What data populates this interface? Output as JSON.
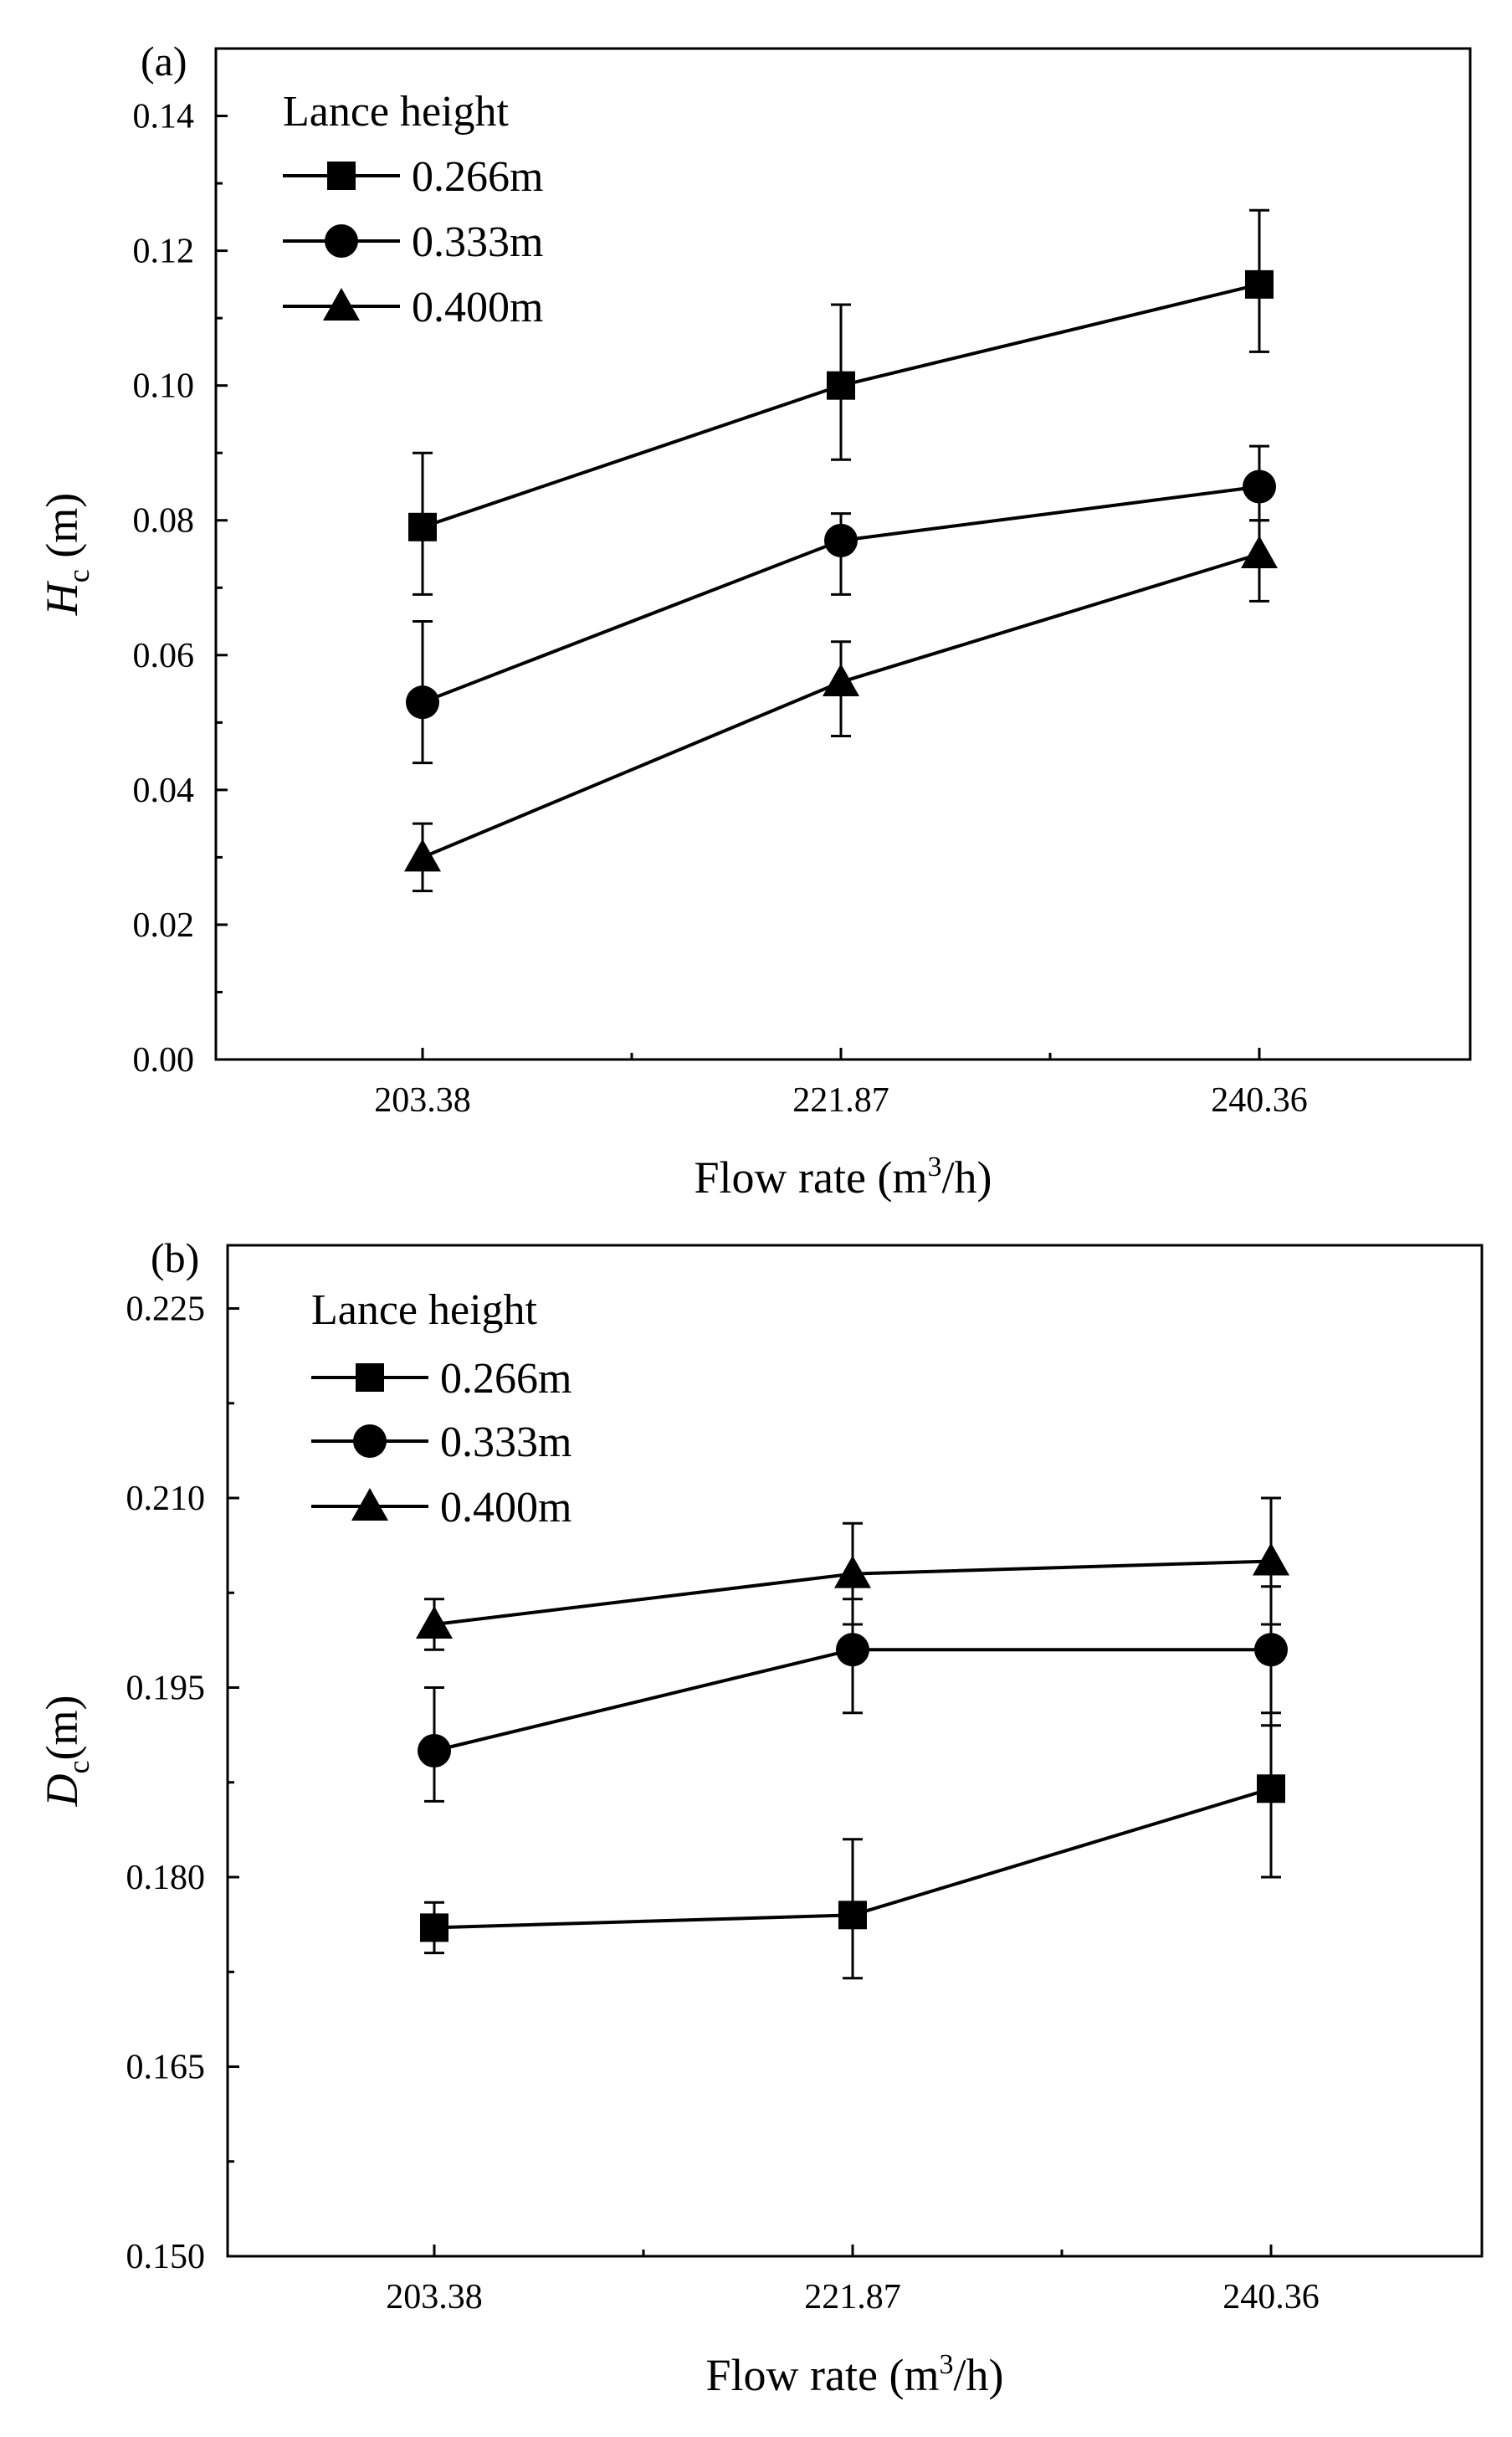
{
  "chart_data": [
    {
      "type": "line",
      "panel_label": "(a)",
      "title": "",
      "xlabel": "Flow rate (m³/h)",
      "xlabel_parts": {
        "pre": "Flow rate (m",
        "sup": "3",
        "post": "/h)"
      },
      "ylabel": "Hc (m)",
      "ylabel_parts": {
        "main": "H",
        "sub": "c",
        "unit": " (m)"
      },
      "categories": [
        "203.38",
        "221.87",
        "240.36"
      ],
      "ylim": [
        0,
        0.15
      ],
      "yticks": [
        "0.00",
        "0.02",
        "0.04",
        "0.06",
        "0.08",
        "0.10",
        "0.12",
        "0.14"
      ],
      "ytick_values": [
        0,
        0.02,
        0.04,
        0.06,
        0.08,
        0.1,
        0.12,
        0.14
      ],
      "legend_title": "Lance height",
      "legend_position": "top-left",
      "series": [
        {
          "name": "0.266m",
          "marker": "square",
          "values": [
            0.079,
            0.1,
            0.115
          ],
          "err_upper": [
            0.09,
            0.112,
            0.126
          ],
          "err_lower": [
            0.069,
            0.089,
            0.105
          ]
        },
        {
          "name": "0.333m",
          "marker": "circle",
          "values": [
            0.053,
            0.077,
            0.085
          ],
          "err_upper": [
            0.065,
            0.081,
            0.091
          ],
          "err_lower": [
            0.044,
            0.069,
            0.08
          ]
        },
        {
          "name": "0.400m",
          "marker": "triangle",
          "values": [
            0.03,
            0.056,
            0.075
          ],
          "err_upper": [
            0.035,
            0.062,
            0.08
          ],
          "err_lower": [
            0.025,
            0.048,
            0.068
          ]
        }
      ]
    },
    {
      "type": "line",
      "panel_label": "(b)",
      "title": "",
      "xlabel": "Flow rate (m³/h)",
      "xlabel_parts": {
        "pre": "Flow rate (m",
        "sup": "3",
        "post": "/h)"
      },
      "ylabel": "Dc(m)",
      "ylabel_parts": {
        "main": "D",
        "sub": "c",
        "unit": "(m)"
      },
      "categories": [
        "203.38",
        "221.87",
        "240.36"
      ],
      "ylim": [
        0.15,
        0.23
      ],
      "yticks": [
        "0.150",
        "0.165",
        "0.180",
        "0.195",
        "0.210",
        "0.225"
      ],
      "ytick_values": [
        0.15,
        0.165,
        0.18,
        0.195,
        0.21,
        0.225
      ],
      "legend_title": "Lance height",
      "legend_position": "top-left",
      "series": [
        {
          "name": "0.266m",
          "marker": "square",
          "values": [
            0.176,
            0.177,
            0.187
          ],
          "err_upper": [
            0.178,
            0.183,
            0.193
          ],
          "err_lower": [
            0.174,
            0.172,
            0.18
          ]
        },
        {
          "name": "0.333m",
          "marker": "circle",
          "values": [
            0.19,
            0.198,
            0.198
          ],
          "err_upper": [
            0.195,
            0.202,
            0.203
          ],
          "err_lower": [
            0.186,
            0.193,
            0.192
          ]
        },
        {
          "name": "0.400m",
          "marker": "triangle",
          "values": [
            0.2,
            0.204,
            0.205
          ],
          "err_upper": [
            0.202,
            0.208,
            0.21
          ],
          "err_lower": [
            0.198,
            0.2,
            0.2
          ]
        }
      ]
    }
  ]
}
